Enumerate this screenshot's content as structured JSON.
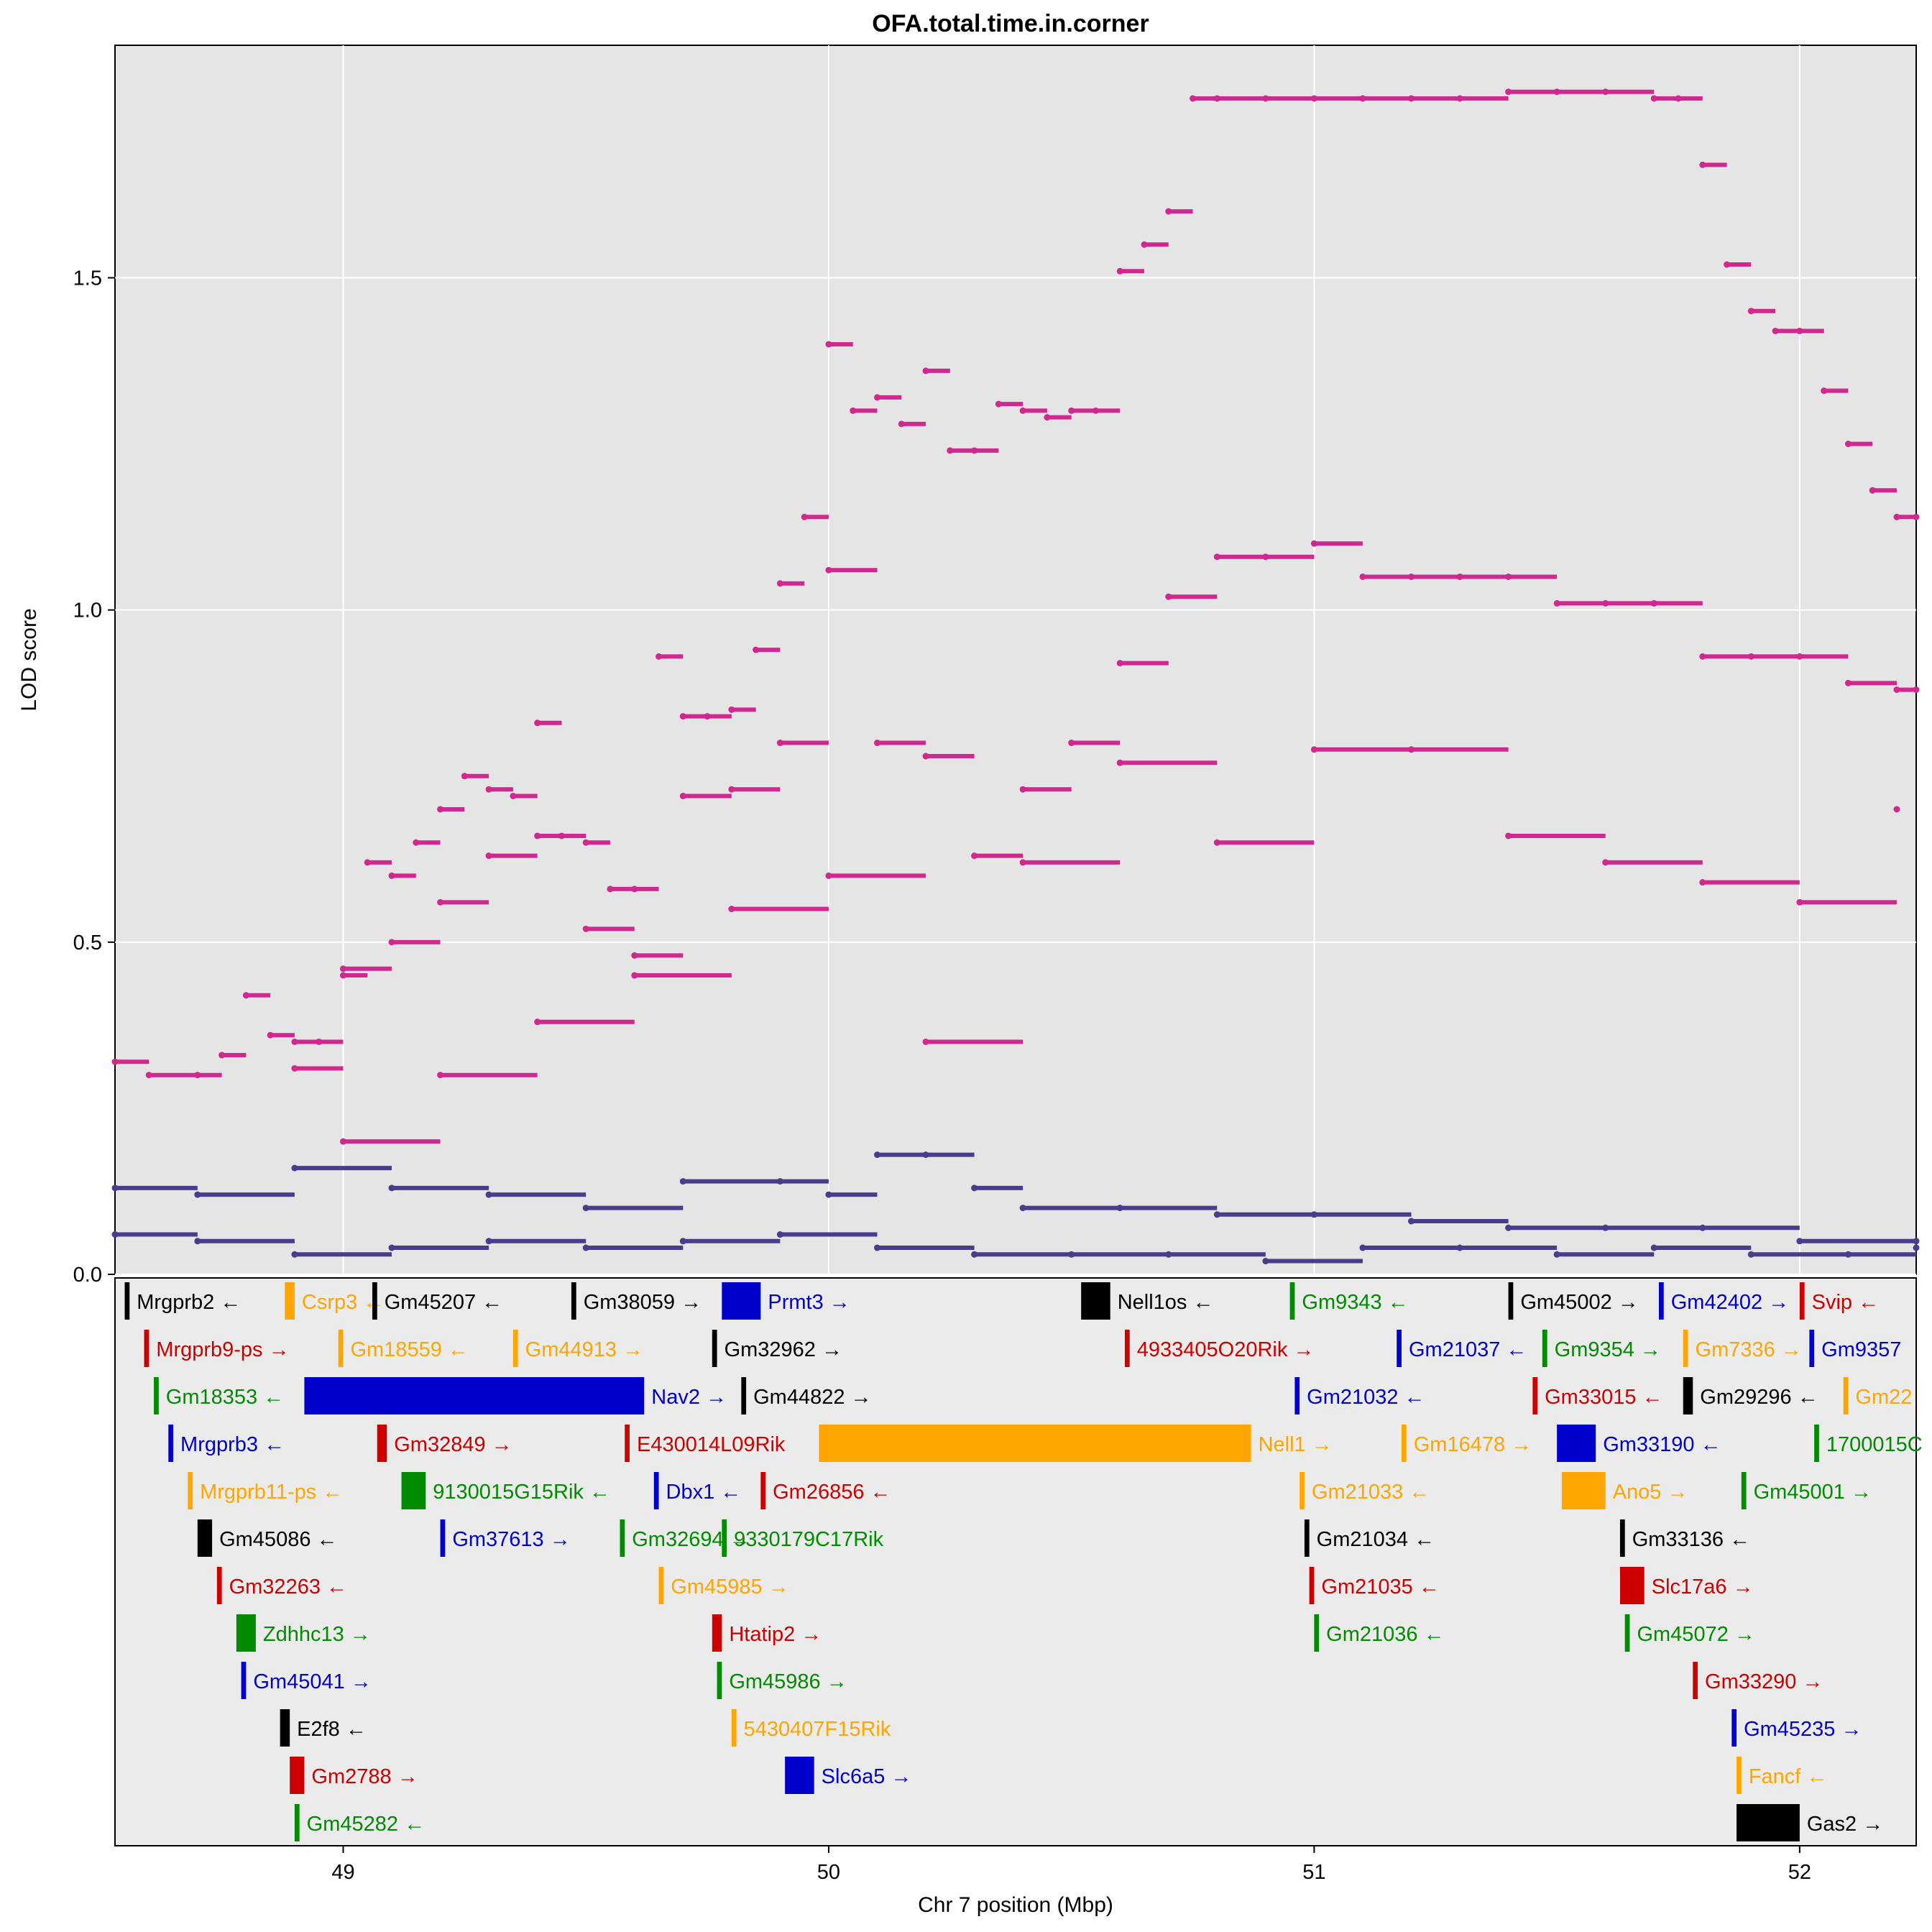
{
  "chart_data": {
    "type": "scatter",
    "title": "OFA.total.time.in.corner",
    "xlabel": "Chr 7 position (Mbp)",
    "ylabel": "LOD score",
    "xlim": [
      48.53,
      52.24
    ],
    "ylim": [
      0,
      1.85
    ],
    "x_ticks": [
      49,
      50,
      51,
      52
    ],
    "y_ticks": [
      0.0,
      0.5,
      1.0,
      1.5
    ],
    "x_tick_labels": [
      "49",
      "50",
      "51",
      "52"
    ],
    "y_tick_labels": [
      "0.0",
      "0.5",
      "1.0",
      "1.5"
    ],
    "grid": true,
    "series": [
      {
        "name": "top-lod-trace",
        "color": "#d0288f",
        "x": [
          48.53,
          48.6,
          48.7,
          48.75,
          48.8,
          48.85,
          48.9,
          48.95,
          49.0,
          49.05,
          49.1,
          49.15,
          49.2,
          49.25,
          49.3,
          49.35,
          49.4,
          49.45,
          49.5,
          49.55,
          49.6,
          49.65,
          49.7,
          49.75,
          49.8,
          49.85,
          49.9,
          49.95,
          50.0,
          50.05,
          50.1,
          50.15,
          50.2,
          50.25,
          50.3,
          50.35,
          50.4,
          50.45,
          50.5,
          50.55,
          50.6,
          50.65,
          50.7,
          50.75,
          50.8,
          50.9,
          51.0,
          51.1,
          51.2,
          51.3,
          51.4,
          51.5,
          51.6,
          51.7,
          51.75,
          51.8,
          51.85,
          51.9,
          51.95,
          52.0,
          52.05,
          52.1,
          52.15,
          52.2,
          52.24
        ],
        "y": [
          0.32,
          0.3,
          0.3,
          0.33,
          0.42,
          0.36,
          0.35,
          0.35,
          0.45,
          0.62,
          0.6,
          0.65,
          0.7,
          0.75,
          0.73,
          0.72,
          0.83,
          0.66,
          0.65,
          0.58,
          0.58,
          0.93,
          0.84,
          0.84,
          0.85,
          0.94,
          1.04,
          1.14,
          1.4,
          1.3,
          1.32,
          1.28,
          1.36,
          1.24,
          1.24,
          1.31,
          1.3,
          1.29,
          1.3,
          1.3,
          1.51,
          1.55,
          1.6,
          1.77,
          1.77,
          1.77,
          1.77,
          1.77,
          1.77,
          1.77,
          1.78,
          1.78,
          1.78,
          1.77,
          1.77,
          1.67,
          1.52,
          1.45,
          1.42,
          1.42,
          1.33,
          1.25,
          1.18,
          1.14,
          1.14
        ]
      },
      {
        "name": "mid-lod-trace",
        "color": "#d0288f",
        "x": [
          48.9,
          49.0,
          49.1,
          49.2,
          49.3,
          49.4,
          49.5,
          49.6,
          49.7,
          49.8,
          49.9,
          50.0,
          50.1,
          50.2,
          50.3,
          50.4,
          50.5,
          50.6,
          50.7,
          50.8,
          50.9,
          51.0,
          51.1,
          51.2,
          51.3,
          51.4,
          51.5,
          51.6,
          51.7,
          51.8,
          51.9,
          52.0,
          52.1,
          52.2,
          52.24
        ],
        "y": [
          0.31,
          0.46,
          0.5,
          0.56,
          0.63,
          0.66,
          0.52,
          0.48,
          0.72,
          0.73,
          0.8,
          1.06,
          0.8,
          0.78,
          0.63,
          0.73,
          0.8,
          0.92,
          1.02,
          1.08,
          1.08,
          1.1,
          1.05,
          1.05,
          1.05,
          1.05,
          1.01,
          1.01,
          1.01,
          0.93,
          0.93,
          0.93,
          0.89,
          0.88,
          0.88
        ]
      },
      {
        "name": "low-lod-trace",
        "color": "#d0288f",
        "x": [
          49.0,
          49.2,
          49.4,
          49.6,
          49.8,
          50.0,
          50.2,
          50.4,
          50.6,
          50.8,
          51.0,
          51.2,
          51.4,
          51.6,
          51.8,
          52.0,
          52.2
        ],
        "y": [
          0.2,
          0.3,
          0.38,
          0.45,
          0.55,
          0.6,
          0.35,
          0.62,
          0.77,
          0.65,
          0.79,
          0.79,
          0.66,
          0.62,
          0.59,
          0.56,
          0.7
        ]
      },
      {
        "name": "background-lod-upper",
        "color": "#483d8b",
        "x": [
          48.53,
          48.7,
          48.9,
          49.1,
          49.3,
          49.5,
          49.7,
          49.9,
          50.0,
          50.1,
          50.2,
          50.3,
          50.4,
          50.6,
          50.8,
          51.0,
          51.2,
          51.4,
          51.6,
          51.8,
          52.0,
          52.24
        ],
        "y": [
          0.13,
          0.12,
          0.16,
          0.13,
          0.12,
          0.1,
          0.14,
          0.14,
          0.12,
          0.18,
          0.18,
          0.13,
          0.1,
          0.1,
          0.09,
          0.09,
          0.08,
          0.07,
          0.07,
          0.07,
          0.05,
          0.05
        ]
      },
      {
        "name": "background-lod-lower",
        "color": "#483d8b",
        "x": [
          48.53,
          48.7,
          48.9,
          49.1,
          49.3,
          49.5,
          49.7,
          49.9,
          50.1,
          50.3,
          50.5,
          50.7,
          50.9,
          51.1,
          51.3,
          51.5,
          51.7,
          51.9,
          52.1,
          52.24
        ],
        "y": [
          0.06,
          0.05,
          0.03,
          0.04,
          0.05,
          0.04,
          0.05,
          0.06,
          0.04,
          0.03,
          0.03,
          0.03,
          0.02,
          0.04,
          0.04,
          0.03,
          0.04,
          0.03,
          0.03,
          0.04
        ]
      }
    ],
    "genes": [
      {
        "name": "Mrgprb2",
        "start": 48.55,
        "end": 48.56,
        "row": 0,
        "strand": "←",
        "color": "#000000"
      },
      {
        "name": "Csrp3",
        "start": 48.88,
        "end": 48.9,
        "row": 0,
        "strand": "←",
        "color": "#ffa500"
      },
      {
        "name": "Gm45207",
        "start": 49.06,
        "end": 49.07,
        "row": 0,
        "strand": "←",
        "color": "#000000"
      },
      {
        "name": "Gm38059",
        "start": 49.47,
        "end": 49.48,
        "row": 0,
        "strand": "→",
        "color": "#000000"
      },
      {
        "name": "Prmt3",
        "start": 49.78,
        "end": 49.86,
        "row": 0,
        "strand": "→",
        "color": "#0000cd"
      },
      {
        "name": "Nell1os",
        "start": 50.52,
        "end": 50.58,
        "row": 0,
        "strand": "←",
        "color": "#000000"
      },
      {
        "name": "Gm9343",
        "start": 50.95,
        "end": 50.96,
        "row": 0,
        "strand": "←",
        "color": "#008b00"
      },
      {
        "name": "Gm45002",
        "start": 51.4,
        "end": 51.41,
        "row": 0,
        "strand": "→",
        "color": "#000000"
      },
      {
        "name": "Gm42402",
        "start": 51.71,
        "end": 51.72,
        "row": 0,
        "strand": "→",
        "color": "#0000cd"
      },
      {
        "name": "Svip",
        "start": 52.0,
        "end": 52.01,
        "row": 0,
        "strand": "←",
        "color": "#cd0000"
      },
      {
        "name": "Mrgprb9-ps",
        "start": 48.59,
        "end": 48.6,
        "row": 1,
        "strand": "→",
        "color": "#cd0000"
      },
      {
        "name": "Gm18559",
        "start": 48.99,
        "end": 49.0,
        "row": 1,
        "strand": "←",
        "color": "#ffa500"
      },
      {
        "name": "Gm44913",
        "start": 49.35,
        "end": 49.36,
        "row": 1,
        "strand": "→",
        "color": "#ffa500"
      },
      {
        "name": "Gm32962",
        "start": 49.76,
        "end": 49.77,
        "row": 1,
        "strand": "→",
        "color": "#000000"
      },
      {
        "name": "4933405O20Rik",
        "start": 50.61,
        "end": 50.62,
        "row": 1,
        "strand": "→",
        "color": "#cd0000"
      },
      {
        "name": "Gm21037",
        "start": 51.17,
        "end": 51.18,
        "row": 1,
        "strand": "←",
        "color": "#0000cd"
      },
      {
        "name": "Gm9354",
        "start": 51.47,
        "end": 51.48,
        "row": 1,
        "strand": "→",
        "color": "#008b00"
      },
      {
        "name": "Gm7336",
        "start": 51.76,
        "end": 51.77,
        "row": 1,
        "strand": "→",
        "color": "#ffa500"
      },
      {
        "name": "Gm9357",
        "start": 52.02,
        "end": 52.03,
        "row": 1,
        "strand": "",
        "color": "#0000cd"
      },
      {
        "name": "Gm18353",
        "start": 48.61,
        "end": 48.62,
        "row": 2,
        "strand": "←",
        "color": "#008b00"
      },
      {
        "name": "Nav2",
        "start": 48.92,
        "end": 49.62,
        "row": 2,
        "strand": "→",
        "color": "#0000cd"
      },
      {
        "name": "Gm44822",
        "start": 49.82,
        "end": 49.83,
        "row": 2,
        "strand": "→",
        "color": "#000000"
      },
      {
        "name": "Gm21032",
        "start": 50.96,
        "end": 50.97,
        "row": 2,
        "strand": "←",
        "color": "#0000cd"
      },
      {
        "name": "Gm33015",
        "start": 51.45,
        "end": 51.46,
        "row": 2,
        "strand": "←",
        "color": "#cd0000"
      },
      {
        "name": "Gm29296",
        "start": 51.76,
        "end": 51.78,
        "row": 2,
        "strand": "←",
        "color": "#000000"
      },
      {
        "name": "Gm22",
        "start": 52.09,
        "end": 52.1,
        "row": 2,
        "strand": "",
        "color": "#ffa500"
      },
      {
        "name": "Mrgprb3",
        "start": 48.64,
        "end": 48.65,
        "row": 3,
        "strand": "←",
        "color": "#0000cd"
      },
      {
        "name": "Gm32849",
        "start": 49.07,
        "end": 49.09,
        "row": 3,
        "strand": "→",
        "color": "#cd0000"
      },
      {
        "name": "E430014L09Rik",
        "start": 49.58,
        "end": 49.59,
        "row": 3,
        "strand": "",
        "color": "#cd0000"
      },
      {
        "name": "Nell1",
        "start": 49.98,
        "end": 50.87,
        "row": 3,
        "strand": "→",
        "color": "#ffa500"
      },
      {
        "name": "Gm16478",
        "start": 51.18,
        "end": 51.19,
        "row": 3,
        "strand": "→",
        "color": "#ffa500"
      },
      {
        "name": "Gm33190",
        "start": 51.5,
        "end": 51.58,
        "row": 3,
        "strand": "←",
        "color": "#0000cd"
      },
      {
        "name": "1700015C",
        "start": 52.03,
        "end": 52.04,
        "row": 3,
        "strand": "",
        "color": "#008b00"
      },
      {
        "name": "Mrgprb11-ps",
        "start": 48.68,
        "end": 48.69,
        "row": 4,
        "strand": "←",
        "color": "#ffa500"
      },
      {
        "name": "9130015G15Rik",
        "start": 49.12,
        "end": 49.17,
        "row": 4,
        "strand": "←",
        "color": "#008b00"
      },
      {
        "name": "Dbx1",
        "start": 49.64,
        "end": 49.65,
        "row": 4,
        "strand": "←",
        "color": "#0000cd"
      },
      {
        "name": "Gm26856",
        "start": 49.86,
        "end": 49.87,
        "row": 4,
        "strand": "←",
        "color": "#cd0000"
      },
      {
        "name": "Gm21033",
        "start": 50.97,
        "end": 50.98,
        "row": 4,
        "strand": "←",
        "color": "#ffa500"
      },
      {
        "name": "Ano5",
        "start": 51.51,
        "end": 51.6,
        "row": 4,
        "strand": "→",
        "color": "#ffa500"
      },
      {
        "name": "Gm45001",
        "start": 51.88,
        "end": 51.89,
        "row": 4,
        "strand": "→",
        "color": "#008b00"
      },
      {
        "name": "Gm45086",
        "start": 48.7,
        "end": 48.73,
        "row": 5,
        "strand": "←",
        "color": "#000000"
      },
      {
        "name": "Gm37613",
        "start": 49.2,
        "end": 49.21,
        "row": 5,
        "strand": "→",
        "color": "#0000cd"
      },
      {
        "name": "Gm32694",
        "start": 49.57,
        "end": 49.58,
        "row": 5,
        "strand": "→",
        "color": "#008b00"
      },
      {
        "name": "9330179C17Rik",
        "start": 49.78,
        "end": 49.79,
        "row": 5,
        "strand": "",
        "color": "#008b00"
      },
      {
        "name": "Gm21034",
        "start": 50.98,
        "end": 50.99,
        "row": 5,
        "strand": "←",
        "color": "#000000"
      },
      {
        "name": "Gm33136",
        "start": 51.63,
        "end": 51.64,
        "row": 5,
        "strand": "←",
        "color": "#000000"
      },
      {
        "name": "Gm32263",
        "start": 48.74,
        "end": 48.75,
        "row": 6,
        "strand": "←",
        "color": "#cd0000"
      },
      {
        "name": "Gm45985",
        "start": 49.65,
        "end": 49.66,
        "row": 6,
        "strand": "→",
        "color": "#ffa500"
      },
      {
        "name": "Gm21035",
        "start": 50.99,
        "end": 51.0,
        "row": 6,
        "strand": "←",
        "color": "#cd0000"
      },
      {
        "name": "Slc17a6",
        "start": 51.63,
        "end": 51.68,
        "row": 6,
        "strand": "→",
        "color": "#cd0000"
      },
      {
        "name": "Zdhhc13",
        "start": 48.78,
        "end": 48.82,
        "row": 7,
        "strand": "→",
        "color": "#008b00"
      },
      {
        "name": "Htatip2",
        "start": 49.76,
        "end": 49.78,
        "row": 7,
        "strand": "→",
        "color": "#cd0000"
      },
      {
        "name": "Gm21036",
        "start": 51.0,
        "end": 51.01,
        "row": 7,
        "strand": "←",
        "color": "#008b00"
      },
      {
        "name": "Gm45072",
        "start": 51.64,
        "end": 51.65,
        "row": 7,
        "strand": "→",
        "color": "#008b00"
      },
      {
        "name": "Gm45041",
        "start": 48.79,
        "end": 48.8,
        "row": 8,
        "strand": "→",
        "color": "#0000cd"
      },
      {
        "name": "Gm45986",
        "start": 49.77,
        "end": 49.78,
        "row": 8,
        "strand": "→",
        "color": "#008b00"
      },
      {
        "name": "Gm33290",
        "start": 51.78,
        "end": 51.79,
        "row": 8,
        "strand": "→",
        "color": "#cd0000"
      },
      {
        "name": "E2f8",
        "start": 48.87,
        "end": 48.89,
        "row": 9,
        "strand": "←",
        "color": "#000000"
      },
      {
        "name": "5430407F15Rik",
        "start": 49.8,
        "end": 49.81,
        "row": 9,
        "strand": "",
        "color": "#ffa500"
      },
      {
        "name": "Gm45235",
        "start": 51.86,
        "end": 51.87,
        "row": 9,
        "strand": "→",
        "color": "#0000cd"
      },
      {
        "name": "Gm2788",
        "start": 48.89,
        "end": 48.92,
        "row": 10,
        "strand": "→",
        "color": "#cd0000"
      },
      {
        "name": "Slc6a5",
        "start": 49.91,
        "end": 49.97,
        "row": 10,
        "strand": "→",
        "color": "#0000cd"
      },
      {
        "name": "Fancf",
        "start": 51.87,
        "end": 51.88,
        "row": 10,
        "strand": "←",
        "color": "#ffa500"
      },
      {
        "name": "Gm45282",
        "start": 48.9,
        "end": 48.91,
        "row": 11,
        "strand": "←",
        "color": "#008b00"
      },
      {
        "name": "Gas2",
        "start": 51.87,
        "end": 52.0,
        "row": 11,
        "strand": "→",
        "color": "#000000"
      }
    ]
  }
}
